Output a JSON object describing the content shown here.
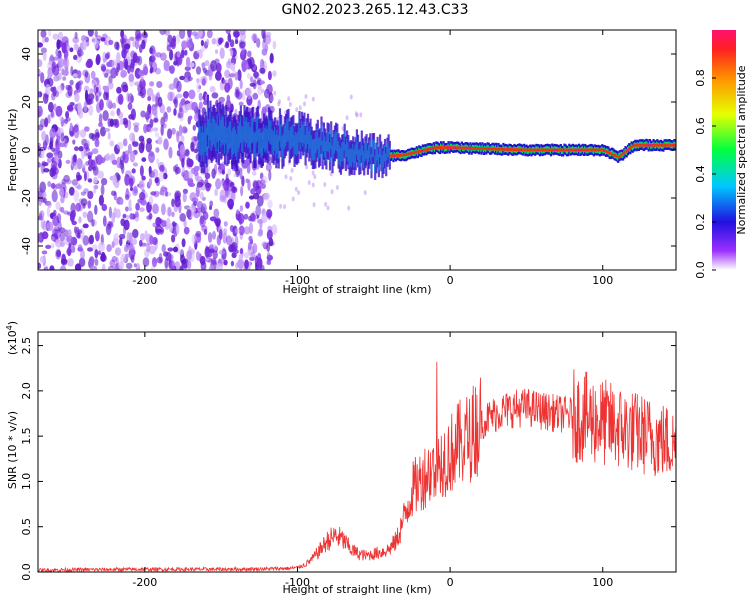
{
  "title": "GN02.2023.265.12.43.C33",
  "colors": {
    "snr_line": "#ee3333",
    "spectrogram_noise": "#7a2be0",
    "frame": "#000000"
  },
  "chart_data": [
    {
      "type": "heatmap",
      "xlabel": "Height of straight line (km)",
      "ylabel": "Frequency (Hz)",
      "xlim": [
        -270,
        148
      ],
      "ylim": [
        -50,
        50
      ],
      "x_ticks": [
        "-200",
        "-100",
        "0",
        "100"
      ],
      "x_tick_values": [
        -200,
        -100,
        0,
        100
      ],
      "y_ticks": [
        "40",
        "20",
        "0",
        "-20",
        "-40"
      ],
      "y_tick_values": [
        40,
        20,
        0,
        -20,
        -40
      ],
      "colorbar": {
        "label": "Normalized spectral amplitude",
        "range": [
          0,
          1
        ],
        "ticks": [
          "0.0",
          "0.2",
          "0.4",
          "0.6",
          "0.8"
        ],
        "tick_values": [
          0.0,
          0.2,
          0.4,
          0.6,
          0.8
        ],
        "colormap": "rainbow (violet to red)"
      },
      "features": {
        "noise_region_x": [
          -270,
          -115
        ],
        "signal_band_center_hz": [
          [
            -160,
            10
          ],
          [
            -140,
            5
          ],
          [
            -110,
            5
          ],
          [
            -90,
            3
          ],
          [
            -70,
            0
          ],
          [
            -50,
            -3
          ],
          [
            -30,
            -2
          ],
          [
            -10,
            1
          ],
          [
            0,
            1
          ],
          [
            50,
            0
          ],
          [
            100,
            0
          ],
          [
            110,
            -3
          ],
          [
            120,
            2
          ],
          [
            148,
            2
          ]
        ]
      }
    },
    {
      "type": "line",
      "xlabel": "Height of straight line (km)",
      "ylabel": "SNR (10 * v/v)",
      "y_multiplier_label": "(x10",
      "y_multiplier_exp": "4",
      "xlim": [
        -270,
        148
      ],
      "ylim": [
        0,
        26500
      ],
      "x_ticks": [
        "-200",
        "-100",
        "0",
        "100"
      ],
      "x_tick_values": [
        -200,
        -100,
        0,
        100
      ],
      "y_ticks": [
        "0.0",
        "0.5",
        "1.0",
        "1.5",
        "2.0",
        "2.5"
      ],
      "y_tick_values": [
        0,
        5000,
        10000,
        15000,
        20000,
        25000
      ],
      "series": [
        {
          "x": [
            -270,
            -250,
            -200,
            -150,
            -120,
            -105,
            -100,
            -95,
            -90,
            -85,
            -80,
            -75,
            -70,
            -65,
            -60,
            -55,
            -50,
            -45,
            -40,
            -35,
            -30,
            -25,
            -20,
            -15,
            -10,
            -5,
            0,
            5,
            10,
            15,
            20,
            25,
            30,
            35,
            40,
            50,
            60,
            70,
            80,
            90,
            100,
            110,
            120,
            130,
            140,
            148
          ],
          "y": [
            200,
            250,
            300,
            300,
            350,
            400,
            500,
            800,
            1500,
            2500,
            3500,
            4000,
            3500,
            2500,
            2000,
            1800,
            2000,
            2200,
            2500,
            3500,
            6000,
            9000,
            10000,
            11000,
            11500,
            12500,
            13000,
            14000,
            14500,
            15500,
            16500,
            17000,
            17500,
            17800,
            18000,
            18200,
            17800,
            17500,
            17300,
            17000,
            16500,
            16000,
            15500,
            15000,
            14500,
            14000
          ]
        }
      ]
    }
  ]
}
